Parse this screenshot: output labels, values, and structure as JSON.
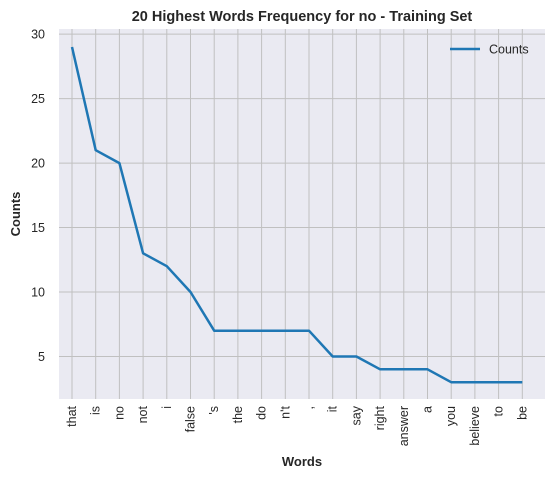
{
  "chart_data": {
    "type": "line",
    "title": "20 Highest Words Frequency for no - Training Set",
    "xlabel": "Words",
    "ylabel": "Counts",
    "categories": [
      "that",
      "is",
      "no",
      "not",
      "i",
      "false",
      "'s",
      "the",
      "do",
      "n't",
      ",",
      "it",
      "say",
      "right",
      "answer",
      "a",
      "you",
      "believe",
      "to",
      "be"
    ],
    "series": [
      {
        "name": "Counts",
        "values": [
          29,
          21,
          20,
          13,
          12,
          10,
          7,
          7,
          7,
          7,
          7,
          5,
          5,
          4,
          4,
          4,
          3,
          3,
          3,
          3
        ]
      }
    ],
    "yticks": [
      5,
      10,
      15,
      20,
      25,
      30
    ],
    "ylim": [
      1.7,
      30.4
    ],
    "grid": true,
    "legend_position": "top-right",
    "colors": {
      "line": "#1f77b4",
      "plot_bg": "#eaeaf2",
      "grid": "#c0c0c0"
    }
  }
}
